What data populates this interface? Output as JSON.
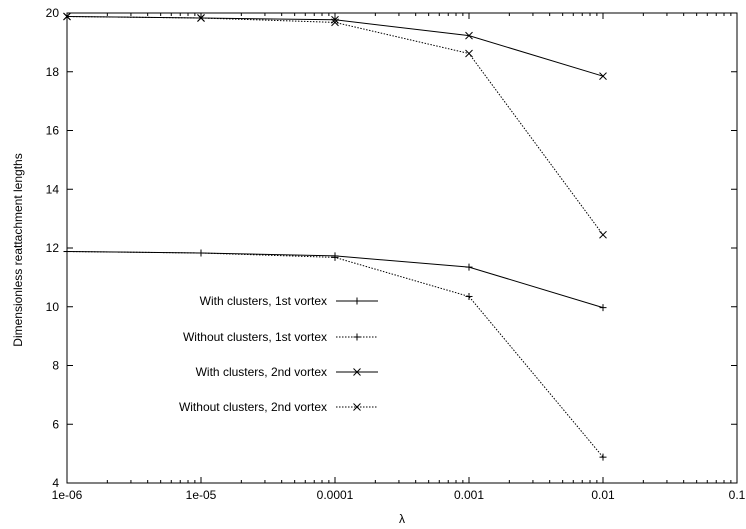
{
  "chart_data": {
    "type": "line",
    "x_scale": "log",
    "x_ticks": [
      "1e-06",
      "1e-05",
      "0.0001",
      "0.001",
      "0.01",
      "0.1"
    ],
    "x_tick_values": [
      1e-06,
      1e-05,
      0.0001,
      0.001,
      0.01,
      0.1
    ],
    "y_ticks": [
      "4",
      "6",
      "8",
      "10",
      "12",
      "14",
      "16",
      "18",
      "20"
    ],
    "y_tick_values": [
      4,
      6,
      8,
      10,
      12,
      14,
      16,
      18,
      20
    ],
    "xlim": [
      1e-06,
      0.1
    ],
    "ylim": [
      4,
      20
    ],
    "xlabel": "λ",
    "ylabel": "Dimensionless reattachment lengths",
    "legend_position": "middle-left",
    "x": [
      1e-06,
      1e-05,
      0.0001,
      0.001,
      0.01
    ],
    "series": [
      {
        "name": "With clusters, 1st vortex",
        "marker": "plus",
        "dash": "solid",
        "values": [
          11.88,
          11.83,
          11.73,
          11.35,
          9.97
        ]
      },
      {
        "name": "Without clusters, 1st vortex",
        "marker": "plus",
        "dash": "dotted",
        "values": [
          11.88,
          11.83,
          11.68,
          10.35,
          4.88
        ]
      },
      {
        "name": "With clusters, 2nd vortex",
        "marker": "cross",
        "dash": "solid",
        "values": [
          19.88,
          19.83,
          19.77,
          19.23,
          17.85
        ]
      },
      {
        "name": "Without clusters, 2nd vortex",
        "marker": "cross",
        "dash": "dotted",
        "values": [
          19.88,
          19.83,
          19.68,
          18.62,
          12.45
        ]
      }
    ]
  }
}
